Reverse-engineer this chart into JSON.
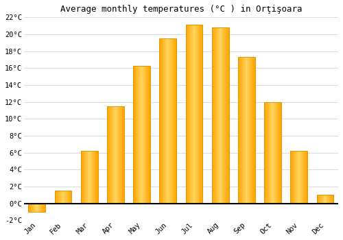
{
  "title": "Average monthly temperatures (°C ) in Orţişoara",
  "months": [
    "Jan",
    "Feb",
    "Mar",
    "Apr",
    "May",
    "Jun",
    "Jul",
    "Aug",
    "Sep",
    "Oct",
    "Nov",
    "Dec"
  ],
  "values": [
    -1.0,
    1.5,
    6.2,
    11.5,
    16.3,
    19.5,
    21.1,
    20.8,
    17.3,
    12.0,
    6.2,
    1.0
  ],
  "ylim": [
    -2,
    22
  ],
  "yticks": [
    -2,
    0,
    2,
    4,
    6,
    8,
    10,
    12,
    14,
    16,
    18,
    20,
    22
  ],
  "background_color": "#ffffff",
  "grid_color": "#dddddd",
  "title_fontsize": 9,
  "tick_fontsize": 7.5,
  "bar_color": "#FFA500",
  "bar_highlight": "#FFD580",
  "bar_edge_color": "#E69500"
}
